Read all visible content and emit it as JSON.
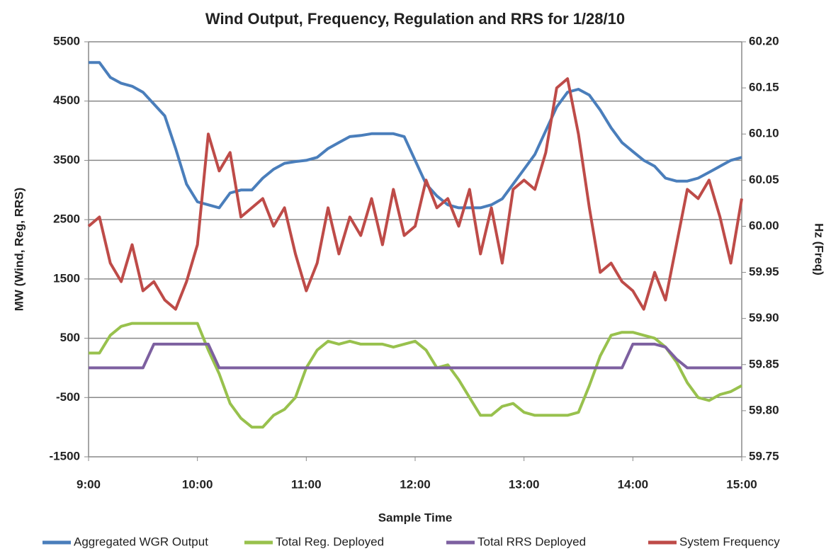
{
  "chart_data": {
    "type": "line",
    "title": "Wind Output, Frequency, Regulation and RRS for 1/28/10",
    "xlabel": "Sample Time",
    "ylabel": "MW (Wind, Reg, RRS)",
    "y2label": "Hz (Freq)",
    "x": [
      9.0,
      9.1,
      9.2,
      9.3,
      9.4,
      9.5,
      9.6,
      9.7,
      9.8,
      9.9,
      10.0,
      10.1,
      10.2,
      10.3,
      10.4,
      10.5,
      10.6,
      10.7,
      10.8,
      10.9,
      11.0,
      11.1,
      11.2,
      11.3,
      11.4,
      11.5,
      11.6,
      11.7,
      11.8,
      11.9,
      12.0,
      12.1,
      12.2,
      12.3,
      12.4,
      12.5,
      12.6,
      12.7,
      12.8,
      12.9,
      13.0,
      13.1,
      13.2,
      13.3,
      13.4,
      13.5,
      13.6,
      13.7,
      13.8,
      13.9,
      14.0,
      14.1,
      14.2,
      14.3,
      14.4,
      14.5,
      14.6,
      14.7,
      14.8,
      14.9,
      15.0
    ],
    "xlim": [
      9,
      15
    ],
    "xticks": [
      {
        "value": 9,
        "label": "9:00"
      },
      {
        "value": 10,
        "label": "10:00"
      },
      {
        "value": 11,
        "label": "11:00"
      },
      {
        "value": 12,
        "label": "12:00"
      },
      {
        "value": 13,
        "label": "13:00"
      },
      {
        "value": 14,
        "label": "14:00"
      },
      {
        "value": 15,
        "label": "15:00"
      }
    ],
    "ylim": [
      -1500,
      5500
    ],
    "yticks": [
      -1500,
      -500,
      500,
      1500,
      2500,
      3500,
      4500,
      5500
    ],
    "y2lim": [
      59.75,
      60.2
    ],
    "y2ticks": [
      59.75,
      {
        "value": 59.8,
        "label": "59.80"
      },
      59.85,
      {
        "value": 59.9,
        "label": "59.90"
      },
      59.95,
      {
        "value": 60.0,
        "label": "60.00"
      },
      60.05,
      {
        "value": 60.1,
        "label": "60.10"
      },
      60.15,
      {
        "value": 60.2,
        "label": "60.20"
      }
    ],
    "grid": true,
    "legend": "bottom",
    "series": [
      {
        "name": "Aggregated WGR Output",
        "color": "#4a7ebb",
        "values": [
          5150,
          5150,
          4900,
          4800,
          4750,
          4650,
          4450,
          4250,
          3700,
          3100,
          2800,
          2750,
          2700,
          2950,
          3000,
          3000,
          3200,
          3350,
          3450,
          3480,
          3500,
          3550,
          3700,
          3800,
          3900,
          3920,
          3950,
          3950,
          3950,
          3900,
          3500,
          3100,
          2900,
          2750,
          2700,
          2700,
          2700,
          2750,
          2850,
          3100,
          3350,
          3600,
          4000,
          4400,
          4650,
          4700,
          4600,
          4350,
          4050,
          3800,
          3650,
          3500,
          3400,
          3200,
          3150,
          3150,
          3200,
          3300,
          3400,
          3500,
          3550
        ]
      },
      {
        "name": "Total Reg. Deployed",
        "color": "#98c14d",
        "values": [
          250,
          250,
          550,
          700,
          750,
          750,
          750,
          750,
          750,
          750,
          750,
          300,
          -100,
          -600,
          -850,
          -1000,
          -1000,
          -800,
          -700,
          -500,
          0,
          300,
          450,
          400,
          450,
          400,
          400,
          400,
          350,
          400,
          450,
          300,
          0,
          50,
          -200,
          -500,
          -800,
          -800,
          -650,
          -600,
          -750,
          -800,
          -800,
          -800,
          -800,
          -750,
          -300,
          200,
          550,
          600,
          600,
          550,
          500,
          350,
          100,
          -250,
          -500,
          -550,
          -450,
          -400,
          -300
        ]
      },
      {
        "name": "Total RRS Deployed",
        "color": "#7d60a0",
        "values": [
          0,
          0,
          0,
          0,
          0,
          0,
          400,
          400,
          400,
          400,
          400,
          400,
          0,
          0,
          0,
          0,
          0,
          0,
          0,
          0,
          0,
          0,
          0,
          0,
          0,
          0,
          0,
          0,
          0,
          0,
          0,
          0,
          0,
          0,
          0,
          0,
          0,
          0,
          0,
          0,
          0,
          0,
          0,
          0,
          0,
          0,
          0,
          0,
          0,
          0,
          400,
          400,
          400,
          350,
          150,
          0,
          0,
          0,
          0,
          0,
          0
        ]
      },
      {
        "name": "System Frequency",
        "color": "#be4b48",
        "axis": "y2",
        "values": [
          60.0,
          60.01,
          59.96,
          59.94,
          59.98,
          59.93,
          59.94,
          59.92,
          59.91,
          59.94,
          59.98,
          60.1,
          60.06,
          60.08,
          60.01,
          60.02,
          60.03,
          60.0,
          60.02,
          59.97,
          59.93,
          59.96,
          60.02,
          59.97,
          60.01,
          59.99,
          60.03,
          59.98,
          60.04,
          59.99,
          60.0,
          60.05,
          60.02,
          60.03,
          60.0,
          60.04,
          59.97,
          60.02,
          59.96,
          60.04,
          60.05,
          60.04,
          60.08,
          60.15,
          60.16,
          60.1,
          60.02,
          59.95,
          59.96,
          59.94,
          59.93,
          59.91,
          59.95,
          59.92,
          59.98,
          60.04,
          60.03,
          60.05,
          60.01,
          59.96,
          60.03
        ]
      }
    ]
  }
}
